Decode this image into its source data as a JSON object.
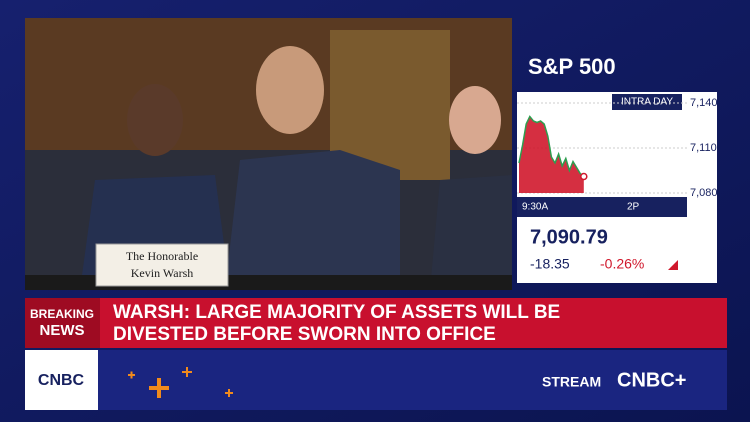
{
  "placard": {
    "line1": "The Honorable",
    "line2": "Kevin Warsh"
  },
  "ticker": {
    "title": "S&P 500",
    "badge": "INTRA DAY",
    "chart": {
      "type": "area",
      "values": [
        7100,
        7112,
        7126,
        7131,
        7128,
        7127,
        7128,
        7126,
        7118,
        7104,
        7100,
        7106,
        7098,
        7103,
        7095,
        7101,
        7097,
        7093,
        7091
      ],
      "ylim": [
        7080,
        7140
      ],
      "yticks": [
        {
          "value": 7140,
          "label": "7,140"
        },
        {
          "value": 7110,
          "label": "7,110"
        },
        {
          "value": 7080,
          "label": "7,080"
        }
      ],
      "xticks": [
        "9:30A",
        "2P"
      ],
      "color": "#d0182c",
      "line_color": "#2e9e4f"
    },
    "price": "7,090.79",
    "change": "-18.35",
    "change_pct": "-0.26%"
  },
  "headline": {
    "label1": "BREAKING",
    "label2": "NEWS",
    "line1": "WARSH: LARGE MAJORITY OF ASSETS WILL BE",
    "line2": "DIVESTED BEFORE SWORN INTO OFFICE"
  },
  "footer": {
    "logo": "CNBC",
    "stream": "STREAM",
    "brand": "CNBC+"
  }
}
